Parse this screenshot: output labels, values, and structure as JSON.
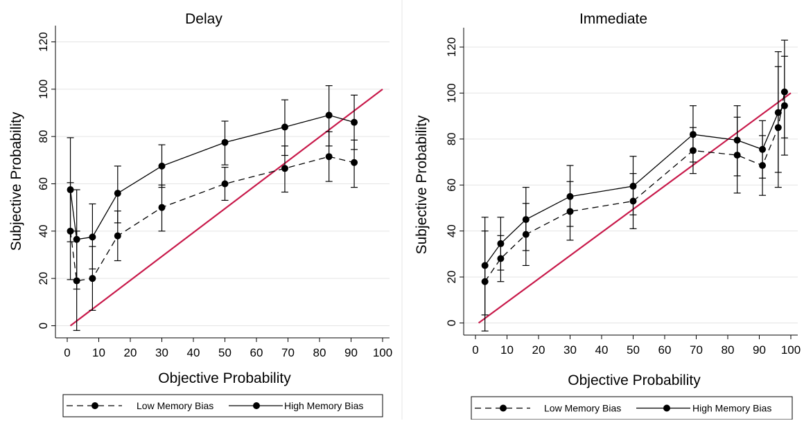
{
  "colors": {
    "ref_line": "#c8194a",
    "series": "#000000",
    "grid": "#e4e4e4"
  },
  "chart_data": [
    {
      "type": "line",
      "title": "Delay",
      "xlabel": "Objective Probability",
      "ylabel": "Subjective Probability",
      "xlim": [
        0,
        100
      ],
      "ylim": [
        0,
        120
      ],
      "x_ticks": [
        "0",
        "10",
        "20",
        "30",
        "40",
        "50",
        "60",
        "70",
        "80",
        "90",
        "100"
      ],
      "y_ticks": [
        "0",
        "20",
        "40",
        "60",
        "80",
        "100",
        "120"
      ],
      "grid": true,
      "legend_position": "bottom",
      "reference_line": [
        [
          1,
          0
        ],
        [
          100,
          100
        ]
      ],
      "series": [
        {
          "name": "Low Memory Bias",
          "dash": "dashed",
          "x": [
            1,
            3,
            8,
            16,
            30,
            50,
            69,
            83,
            91
          ],
          "y": [
            40,
            19,
            20,
            38,
            50,
            60,
            66.5,
            71.5,
            69
          ],
          "err_low": [
            19.5,
            -2,
            6.5,
            27.5,
            40,
            53,
            56.5,
            61,
            58.5
          ],
          "err_high": [
            60.5,
            40,
            33.5,
            48.5,
            59.5,
            67,
            76,
            82,
            78.5
          ]
        },
        {
          "name": "High Memory Bias",
          "dash": "solid",
          "x": [
            1,
            3,
            8,
            16,
            30,
            50,
            69,
            83,
            91
          ],
          "y": [
            57.5,
            36.5,
            37.5,
            56,
            67.5,
            77.5,
            84,
            89,
            86
          ],
          "err_low": [
            35.5,
            15.5,
            24,
            43.5,
            58.5,
            68,
            72,
            76,
            74.5
          ],
          "err_high": [
            79.5,
            57.5,
            51.5,
            67.5,
            76.5,
            86.5,
            95.5,
            101.5,
            97.5
          ]
        }
      ]
    },
    {
      "type": "line",
      "title": "Immediate",
      "xlabel": "Objective Probability",
      "ylabel": "Subjective Probability",
      "xlim": [
        0,
        100
      ],
      "ylim": [
        0,
        120
      ],
      "x_ticks": [
        "0",
        "10",
        "20",
        "30",
        "40",
        "50",
        "60",
        "70",
        "80",
        "90",
        "100"
      ],
      "y_ticks": [
        "0",
        "20",
        "40",
        "60",
        "80",
        "100",
        "120"
      ],
      "grid": true,
      "legend_position": "bottom",
      "reference_line": [
        [
          1,
          0
        ],
        [
          100,
          100
        ]
      ],
      "series": [
        {
          "name": "Low Memory Bias",
          "dash": "dashed",
          "x": [
            3,
            8,
            16,
            30,
            50,
            69,
            83,
            91,
            96,
            98
          ],
          "y": [
            18,
            28,
            38.5,
            48.5,
            53,
            75,
            73,
            68.5,
            85,
            100.5
          ],
          "err_low": [
            -3.5,
            18,
            25,
            36,
            41,
            65,
            56.5,
            55.5,
            59,
            73
          ],
          "err_high": [
            40,
            38,
            52,
            61.5,
            65,
            85,
            89.5,
            81.5,
            111.5,
            116
          ]
        },
        {
          "name": "High Memory Bias",
          "dash": "solid",
          "x": [
            3,
            8,
            16,
            30,
            50,
            69,
            83,
            91,
            96,
            98
          ],
          "y": [
            25,
            34.5,
            45,
            55,
            59.5,
            82,
            79.5,
            75.5,
            91.5,
            94.5
          ],
          "err_low": [
            3.5,
            23,
            31.5,
            42,
            47,
            70,
            64,
            63,
            65.5,
            80.5
          ],
          "err_high": [
            46,
            46,
            59,
            68.5,
            72.5,
            94.5,
            94.5,
            88,
            118,
            123
          ]
        }
      ]
    }
  ]
}
